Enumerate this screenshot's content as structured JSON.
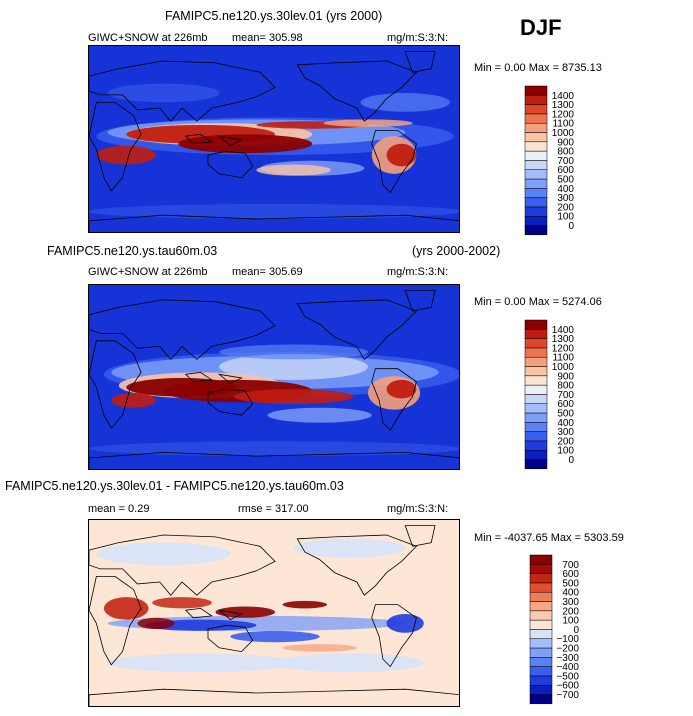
{
  "season": "DJF",
  "panels": [
    {
      "id": "p1",
      "title_left": "FAMIPC5.ne120.ys.30lev.01 (yrs 2000)",
      "title_right": "",
      "subtitle_field": "GIWC+SNOW at 226mb",
      "subtitle_stat": "mean= 305.98",
      "units": "mg/m:S:3:N:",
      "minmax": "Min =    0.00 Max = 8735.13"
    },
    {
      "id": "p2",
      "title_left": "FAMIPC5.ne120.ys.tau60m.03",
      "title_right": "(yrs 2000-2002)",
      "subtitle_field": "GIWC+SNOW at 226mb",
      "subtitle_stat": "mean= 305.69",
      "units": "mg/m:S:3:N:",
      "minmax": "Min =    0.00 Max = 5274.06"
    },
    {
      "id": "p3",
      "title_left": "FAMIPC5.ne120.ys.30lev.01 - FAMIPC5.ne120.ys.tau60m.03",
      "title_right": "",
      "subtitle_field": "mean =    0.29",
      "subtitle_stat": "rmse =  317.00",
      "units": "mg/m:S:3:N:",
      "minmax": "Min = -4037.65 Max = 5303.59"
    }
  ],
  "chart_data": [
    {
      "type": "heatmap",
      "title": "FAMIPC5.ne120.ys.30lev.01 (yrs 2000)",
      "field": "GIWC+SNOW at 226mb",
      "units": "mg/m:S:3:N:",
      "mean": 305.98,
      "min": 0.0,
      "max": 8735.13,
      "colorbar_levels": [
        0,
        100,
        200,
        300,
        400,
        500,
        600,
        700,
        800,
        900,
        1000,
        1100,
        1200,
        1300,
        1400
      ],
      "colorbar_colors": [
        "#00008b",
        "#0a1fc0",
        "#1f3ce0",
        "#3a5fee",
        "#5b82f5",
        "#7fa0f7",
        "#a3bdf8",
        "#c9d8f8",
        "#eaf0f8",
        "#fbe3d2",
        "#f9c4a6",
        "#f3a17c",
        "#ec7450",
        "#de4727",
        "#c01d10",
        "#8b0000"
      ]
    },
    {
      "type": "heatmap",
      "title": "FAMIPC5.ne120.ys.tau60m.03",
      "subtitle": "(yrs 2000-2002)",
      "field": "GIWC+SNOW at 226mb",
      "units": "mg/m:S:3:N:",
      "mean": 305.69,
      "min": 0.0,
      "max": 5274.06,
      "colorbar_levels": [
        0,
        100,
        200,
        300,
        400,
        500,
        600,
        700,
        800,
        900,
        1000,
        1100,
        1200,
        1300,
        1400
      ],
      "colorbar_colors": [
        "#00008b",
        "#0a1fc0",
        "#1f3ce0",
        "#3a5fee",
        "#5b82f5",
        "#7fa0f7",
        "#a3bdf8",
        "#c9d8f8",
        "#eaf0f8",
        "#fbe3d2",
        "#f9c4a6",
        "#f3a17c",
        "#ec7450",
        "#de4727",
        "#c01d10",
        "#8b0000"
      ]
    },
    {
      "type": "heatmap",
      "title": "FAMIPC5.ne120.ys.30lev.01 - FAMIPC5.ne120.ys.tau60m.03",
      "units": "mg/m:S:3:N:",
      "mean": 0.29,
      "rmse": 317.0,
      "min": -4037.65,
      "max": 5303.59,
      "colorbar_levels": [
        -700,
        -600,
        -500,
        -400,
        -300,
        -200,
        -100,
        0,
        100,
        200,
        300,
        400,
        500,
        600,
        700
      ],
      "colorbar_colors": [
        "#00008b",
        "#0a1fc0",
        "#1f3ce0",
        "#3a5fee",
        "#5b82f5",
        "#7fa0f7",
        "#a3bdf8",
        "#d7e3f9",
        "#fde6d6",
        "#fbc9ad",
        "#f6a684",
        "#ee7c57",
        "#e0502e",
        "#c42614",
        "#a40a06",
        "#8b0000"
      ]
    }
  ]
}
